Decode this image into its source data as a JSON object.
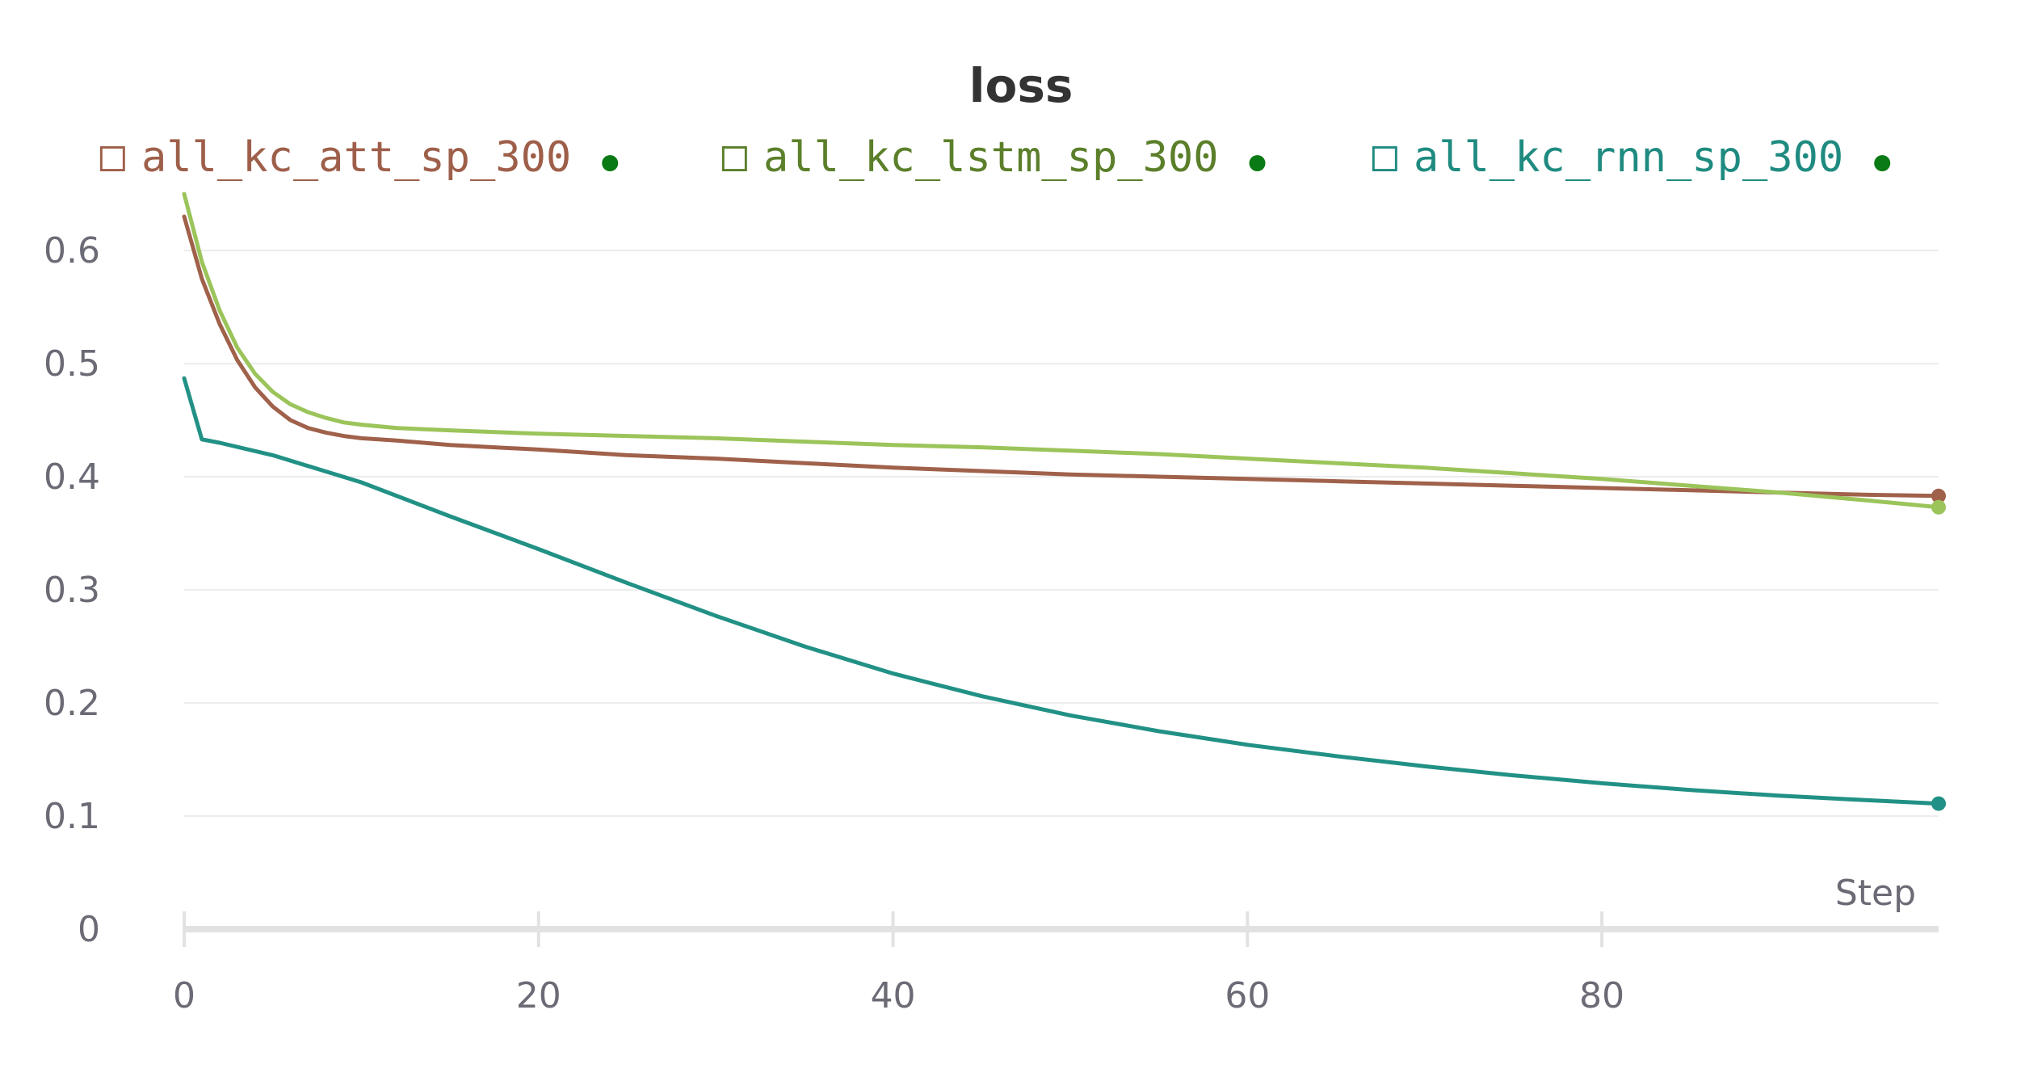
{
  "chart_data": {
    "type": "line",
    "title": "loss",
    "xlabel": "Step",
    "ylabel": "",
    "xlim": [
      0,
      99
    ],
    "ylim": [
      0,
      0.65
    ],
    "grid": true,
    "legend_position": "top",
    "x_ticks": [
      {
        "value": 0,
        "label": "0"
      },
      {
        "value": 20,
        "label": "20"
      },
      {
        "value": 40,
        "label": "40"
      },
      {
        "value": 60,
        "label": "60"
      },
      {
        "value": 80,
        "label": "80"
      }
    ],
    "y_ticks": [
      {
        "value": 0,
        "label": "0"
      },
      {
        "value": 0.1,
        "label": "0.1"
      },
      {
        "value": 0.2,
        "label": "0.2"
      },
      {
        "value": 0.3,
        "label": "0.3"
      },
      {
        "value": 0.4,
        "label": "0.4"
      },
      {
        "value": 0.5,
        "label": "0.5"
      },
      {
        "value": 0.6,
        "label": "0.6"
      }
    ],
    "series": [
      {
        "name": "all_kc_att_sp_300",
        "color": "#a0614b",
        "legend_text_color": "#9e5f4a",
        "legend_marker": "□",
        "x": [
          0,
          1,
          2,
          3,
          4,
          5,
          6,
          7,
          8,
          9,
          10,
          12,
          15,
          20,
          25,
          30,
          35,
          40,
          45,
          50,
          55,
          60,
          65,
          70,
          75,
          80,
          85,
          90,
          95,
          99
        ],
        "y": [
          0.63,
          0.575,
          0.535,
          0.503,
          0.479,
          0.462,
          0.45,
          0.443,
          0.439,
          0.436,
          0.434,
          0.432,
          0.428,
          0.424,
          0.419,
          0.416,
          0.412,
          0.408,
          0.405,
          0.402,
          0.4,
          0.398,
          0.396,
          0.394,
          0.392,
          0.39,
          0.388,
          0.386,
          0.384,
          0.383
        ]
      },
      {
        "name": "all_kc_lstm_sp_300",
        "color": "#9bc45a",
        "legend_text_color": "#5b7f2a",
        "legend_marker": "□",
        "x": [
          0,
          1,
          2,
          3,
          4,
          5,
          6,
          7,
          8,
          9,
          10,
          12,
          15,
          20,
          25,
          30,
          35,
          40,
          45,
          50,
          55,
          60,
          65,
          70,
          75,
          80,
          85,
          90,
          95,
          99
        ],
        "y": [
          0.65,
          0.59,
          0.547,
          0.514,
          0.491,
          0.475,
          0.464,
          0.457,
          0.452,
          0.448,
          0.446,
          0.443,
          0.441,
          0.438,
          0.436,
          0.434,
          0.431,
          0.428,
          0.426,
          0.423,
          0.42,
          0.416,
          0.412,
          0.408,
          0.403,
          0.398,
          0.392,
          0.386,
          0.379,
          0.373
        ]
      },
      {
        "name": "all_kc_rnn_sp_300",
        "color": "#229185",
        "legend_text_color": "#1f8b80",
        "legend_marker": "□",
        "x": [
          0,
          1,
          2,
          5,
          10,
          15,
          20,
          25,
          30,
          35,
          40,
          45,
          50,
          55,
          60,
          65,
          70,
          75,
          80,
          85,
          90,
          95,
          99
        ],
        "y": [
          0.487,
          0.433,
          0.43,
          0.419,
          0.395,
          0.365,
          0.336,
          0.306,
          0.277,
          0.25,
          0.226,
          0.206,
          0.189,
          0.175,
          0.163,
          0.153,
          0.144,
          0.136,
          0.129,
          0.123,
          0.118,
          0.114,
          0.111
        ]
      }
    ]
  }
}
